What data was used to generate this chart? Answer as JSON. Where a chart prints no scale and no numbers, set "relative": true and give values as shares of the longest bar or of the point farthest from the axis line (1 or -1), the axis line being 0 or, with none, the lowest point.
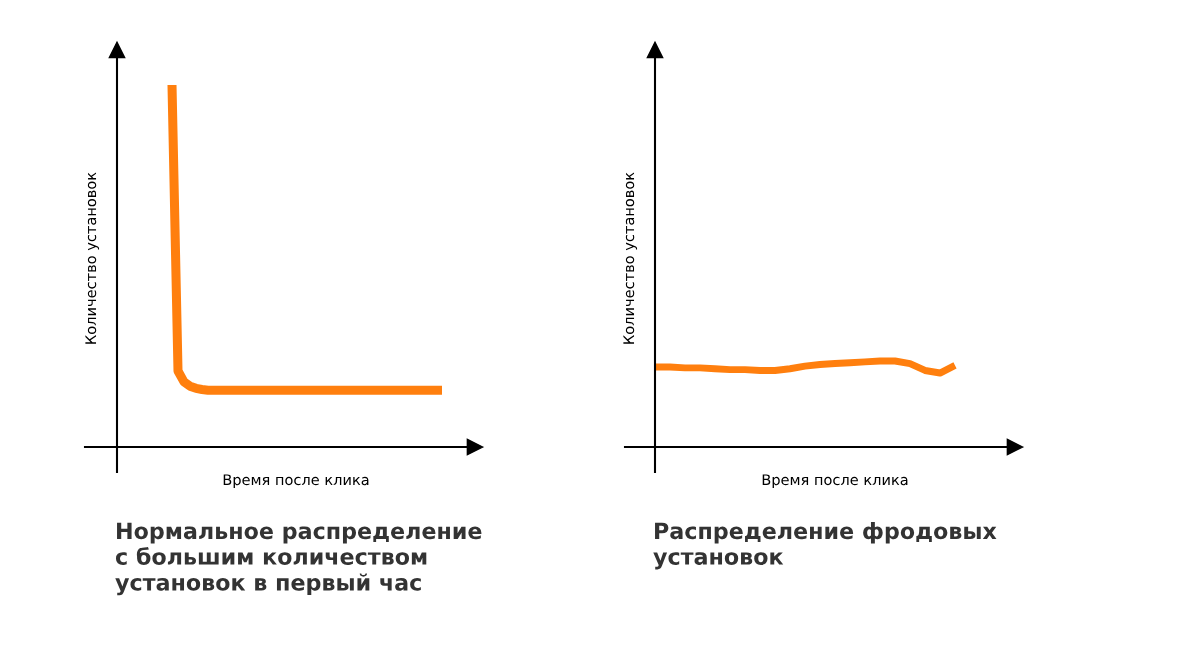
{
  "chart_data": [
    {
      "type": "line",
      "relative": true,
      "title": "Нормальное распределение\nс большим количеством\nустановок в первый час",
      "xlabel": "Время после клика",
      "ylabel": "Количество установок",
      "categories": [
        null,
        null,
        null,
        null,
        null,
        null,
        null,
        null,
        null,
        null,
        null,
        null,
        null,
        null,
        null,
        null,
        null,
        null,
        null,
        null,
        null,
        null,
        null,
        null,
        null,
        null,
        null,
        null,
        null,
        null,
        null,
        null,
        null,
        null,
        null,
        null,
        null,
        null,
        null,
        null,
        null,
        null,
        null,
        null,
        null,
        null
      ],
      "series": [
        {
          "color": "#ff7f0e",
          "values": [
            1.0,
            0.21,
            0.18,
            0.168,
            0.162,
            0.159,
            0.157,
            0.157,
            0.157,
            0.157,
            0.157,
            0.157,
            0.157,
            0.157,
            0.157,
            0.157,
            0.157,
            0.157,
            0.157,
            0.157,
            0.157,
            0.157,
            0.157,
            0.157,
            0.157,
            0.157,
            0.157,
            0.157,
            0.157,
            0.157,
            0.157,
            0.157,
            0.157,
            0.157,
            0.157,
            0.157,
            0.157,
            0.157,
            0.157,
            0.157,
            0.157,
            0.157,
            0.157,
            0.157,
            0.157,
            0.157
          ]
        }
      ]
    },
    {
      "type": "line",
      "relative": true,
      "title": "Распределение фродовых\nустановок",
      "xlabel": "Время после клика",
      "ylabel": "Количество установок",
      "categories": [
        null,
        null,
        null,
        null,
        null,
        null,
        null,
        null,
        null,
        null,
        null,
        null,
        null,
        null,
        null,
        null,
        null,
        null,
        null,
        null,
        null
      ],
      "series": [
        {
          "color": "#ff7f0e",
          "values": [
            0.93,
            0.93,
            0.92,
            0.92,
            0.91,
            0.9,
            0.9,
            0.89,
            0.89,
            0.91,
            0.94,
            0.96,
            0.97,
            0.98,
            0.99,
            1.0,
            1.0,
            0.97,
            0.89,
            0.86,
            0.95
          ]
        }
      ]
    }
  ]
}
